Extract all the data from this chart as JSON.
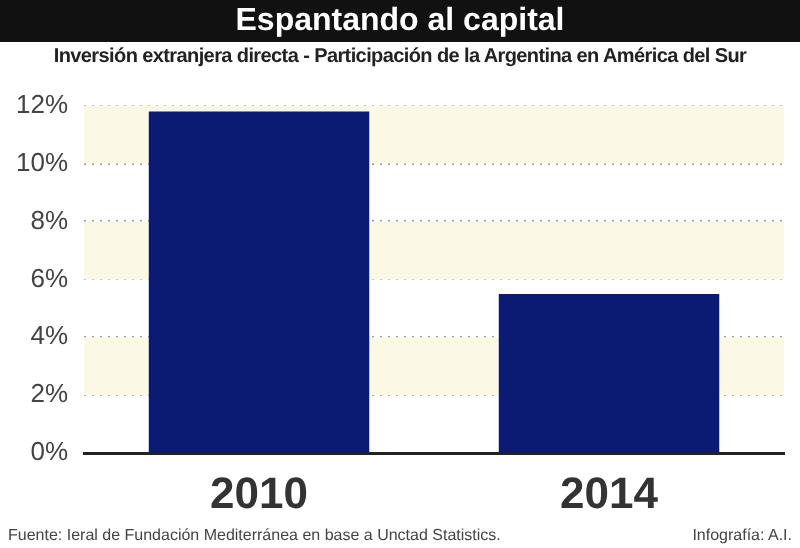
{
  "chart_data": {
    "type": "bar",
    "title": "Espantando al capital",
    "subtitle": "Inversión extranjera directa - Participación de la Argentina en América del Sur",
    "categories": [
      "2010",
      "2014"
    ],
    "values": [
      11.8,
      5.5
    ],
    "color": "#0b1a73",
    "ylim": [
      0,
      12
    ],
    "yticks": [
      {
        "value": 0,
        "label": "0%"
      },
      {
        "value": 2,
        "label": "2%"
      },
      {
        "value": 4,
        "label": "4%"
      },
      {
        "value": 6,
        "label": "6%"
      },
      {
        "value": 8,
        "label": "8%"
      },
      {
        "value": 10,
        "label": "10%"
      },
      {
        "value": 12,
        "label": "12%"
      }
    ],
    "grid": "y",
    "line_style": "dotted",
    "bands": [
      {
        "axis": "y",
        "from": 2,
        "to": 4,
        "color": "#fcf8e6"
      },
      {
        "axis": "y",
        "from": 6,
        "to": 8,
        "color": "#fcf8e6"
      },
      {
        "axis": "y",
        "from": 10,
        "to": 12,
        "color": "#fcf8e6"
      }
    ],
    "annotations": [
      "Fuente: Ieral de Fundación Mediterránea en base a Unctad Statistics.",
      "Infografía: A.I."
    ]
  }
}
